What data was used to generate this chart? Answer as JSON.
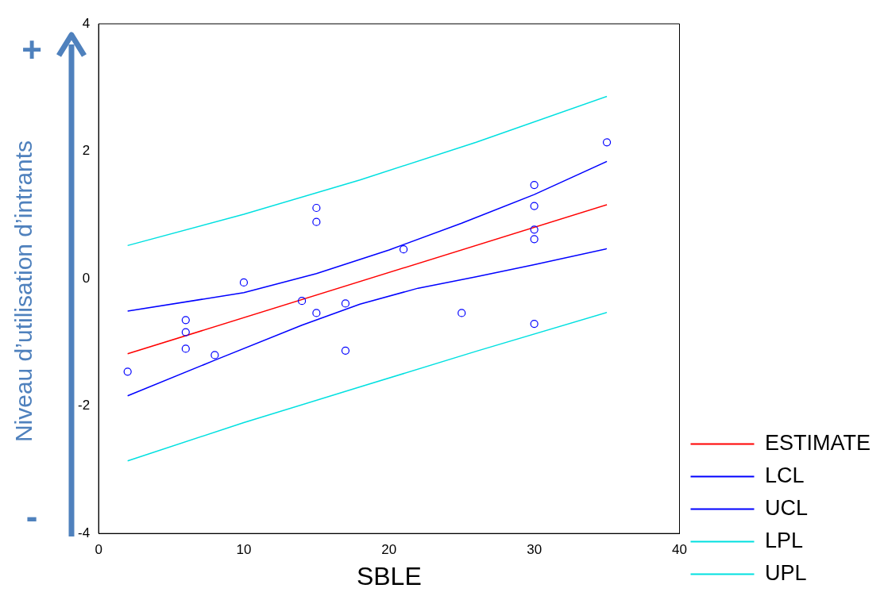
{
  "chart_data": {
    "type": "scatter",
    "xlabel": "SBLE",
    "ylabel": "Niveau d’utilisation d’intrants",
    "annotations": [
      "+",
      "-"
    ],
    "xlim": [
      0,
      40
    ],
    "xticks": [
      0,
      10,
      20,
      30,
      40
    ],
    "ylim": [
      -4,
      4
    ],
    "yticks": [
      -4,
      -2,
      0,
      2,
      4
    ],
    "grid": false,
    "legend": "bottom right",
    "series": [
      {
        "marker": "circle",
        "color": "#0000ff",
        "x": [
          2,
          6,
          6,
          6,
          8,
          10,
          14,
          15,
          15,
          15,
          17,
          17,
          21,
          25,
          30,
          30,
          30,
          30,
          30,
          35
        ],
        "values": [
          -1.46,
          -0.65,
          -0.84,
          -1.1,
          -1.2,
          -0.06,
          -0.35,
          1.11,
          0.89,
          -0.54,
          -0.39,
          -1.13,
          0.46,
          -0.54,
          1.47,
          1.14,
          0.77,
          0.62,
          -0.71,
          2.14
        ]
      },
      {
        "type": "line",
        "marker": "none",
        "name": "ESTIMATE",
        "color": "#ff0000",
        "x": [
          2,
          35
        ],
        "values": [
          -1.18,
          1.16
        ]
      },
      {
        "type": "line",
        "marker": "none",
        "name": "LCL",
        "color": "#0000ff",
        "x": [
          2,
          8,
          14,
          18,
          22,
          26,
          30,
          35
        ],
        "values": [
          -1.84,
          -1.28,
          -0.73,
          -0.4,
          -0.15,
          0.03,
          0.22,
          0.47
        ]
      },
      {
        "type": "line",
        "marker": "none",
        "name": "UCL",
        "color": "#0000ff",
        "x": [
          2,
          10,
          15,
          20,
          25,
          30,
          35
        ],
        "values": [
          -0.51,
          -0.22,
          0.08,
          0.45,
          0.87,
          1.32,
          1.84
        ]
      },
      {
        "type": "line",
        "marker": "none",
        "name": "LPL",
        "color": "#00e0e0",
        "x": [
          2,
          10,
          18,
          26,
          35
        ],
        "values": [
          -2.86,
          -2.26,
          -1.7,
          -1.14,
          -0.53
        ]
      },
      {
        "type": "line",
        "marker": "none",
        "name": "UPL",
        "color": "#00e0e0",
        "x": [
          2,
          10,
          18,
          26,
          35
        ],
        "values": [
          0.52,
          1.01,
          1.55,
          2.14,
          2.86
        ]
      }
    ]
  }
}
